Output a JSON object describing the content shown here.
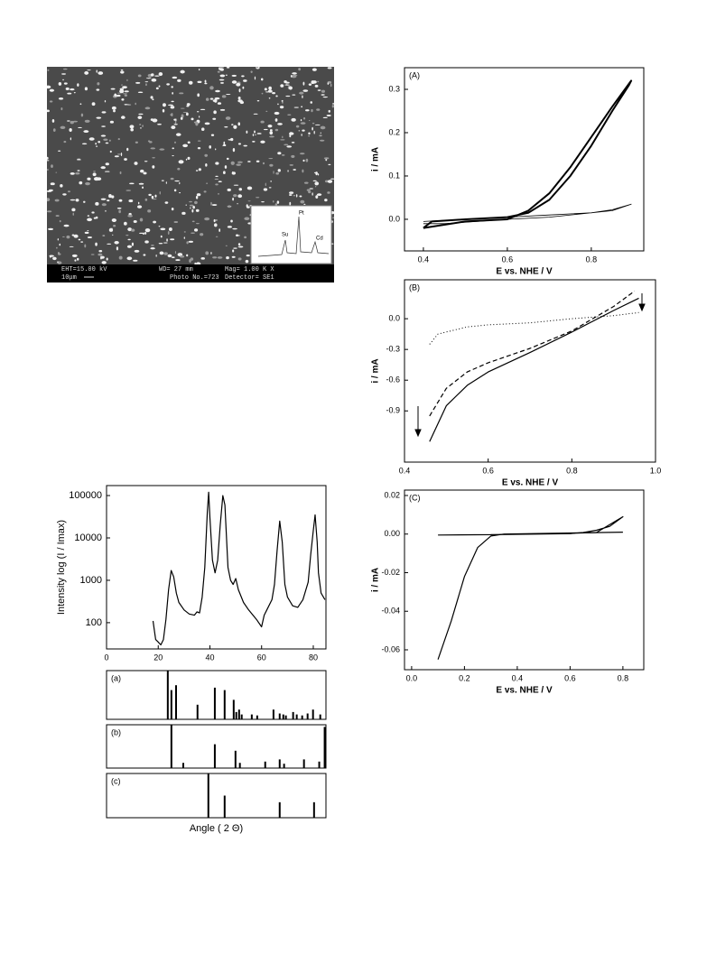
{
  "sem": {
    "eht": "EHT=15.00 kV",
    "wd": "WD= 27 mm",
    "mag": "Mag= 1.00 K X",
    "scale": "10μm",
    "photo": "Photo No.=723",
    "detector": "Detector= SE1",
    "peaks": [
      "Su",
      "Pt",
      "Cd"
    ]
  },
  "chart_data": [
    {
      "type": "line",
      "panel_label": "(A)",
      "xlabel": "E vs. NHE / V",
      "ylabel": "i / mA",
      "xlim": [
        0.355,
        0.925
      ],
      "xticks": [
        0.4,
        0.6,
        0.8
      ],
      "ylim": [
        -0.073,
        0.35
      ],
      "yticks": [
        {
          "value": 0,
          "label": "0.0"
        },
        0.1,
        0.2,
        0.3
      ],
      "series": [
        {
          "color": "#000000",
          "line_style": "thick",
          "x": [
            0.4,
            0.5,
            0.6,
            0.65,
            0.7,
            0.75,
            0.8,
            0.85,
            0.895,
            0.89,
            0.85,
            0.8,
            0.75,
            0.7,
            0.65,
            0.6,
            0.5,
            0.42,
            0.4
          ],
          "values": [
            -0.02,
            -0.005,
            0.0,
            0.02,
            0.06,
            0.12,
            0.19,
            0.26,
            0.32,
            0.31,
            0.25,
            0.17,
            0.1,
            0.045,
            0.015,
            0.005,
            0.0,
            -0.005,
            -0.02
          ]
        },
        {
          "color": "#000000",
          "line_style": "thin",
          "x": [
            0.4,
            0.5,
            0.6,
            0.7,
            0.8,
            0.85,
            0.895,
            0.85,
            0.7,
            0.6,
            0.45,
            0.4
          ],
          "values": [
            -0.005,
            0.0,
            0.005,
            0.01,
            0.015,
            0.022,
            0.035,
            0.02,
            0.005,
            0.0,
            -0.01,
            -0.01
          ]
        }
      ]
    },
    {
      "type": "line",
      "panel_label": "(B)",
      "xlabel": "E vs. NHE / V",
      "ylabel": "i / mA",
      "xlim": [
        0.4,
        1.0
      ],
      "xticks": [
        0.4,
        0.6,
        0.8,
        {
          "value": 1,
          "label": "1.0"
        }
      ],
      "ylim": [
        -1.4,
        0.38
      ],
      "yticks": [
        {
          "value": 0,
          "label": "0.0"
        },
        -0.3,
        -0.6,
        -0.9
      ],
      "series": [
        {
          "color": "#000000",
          "line_style": "solid",
          "x": [
            0.46,
            0.5,
            0.55,
            0.6,
            0.7,
            0.8,
            0.9,
            0.96
          ],
          "values": [
            -1.2,
            -0.85,
            -0.65,
            -0.52,
            -0.33,
            -0.13,
            0.08,
            0.2
          ]
        },
        {
          "color": "#000000",
          "line_style": "dashed",
          "x": [
            0.46,
            0.5,
            0.55,
            0.6,
            0.7,
            0.8,
            0.9,
            0.95
          ],
          "values": [
            -0.95,
            -0.68,
            -0.52,
            -0.43,
            -0.29,
            -0.12,
            0.12,
            0.27
          ]
        },
        {
          "color": "#000000",
          "line_style": "dotted",
          "x": [
            0.46,
            0.48,
            0.55,
            0.6,
            0.7,
            0.8,
            0.9,
            0.96
          ],
          "values": [
            -0.25,
            -0.15,
            -0.08,
            -0.06,
            -0.04,
            0.0,
            0.03,
            0.06
          ]
        }
      ]
    },
    {
      "type": "line",
      "panel_label": "(C)",
      "xlabel": "E vs. NHE / V",
      "ylabel": "i / mA",
      "xlim": [
        -0.027,
        0.879
      ],
      "xticks": [
        {
          "value": 0,
          "label": "0.0"
        },
        0.2,
        0.4,
        0.6,
        0.8
      ],
      "ylim": [
        -0.0703,
        0.0228
      ],
      "yticks": [
        0.02,
        {
          "value": 0,
          "label": "0.00"
        },
        -0.02,
        -0.04,
        -0.06
      ],
      "series": [
        {
          "color": "#000000",
          "line_style": "solid",
          "x": [
            0.1,
            0.3,
            0.5,
            0.6,
            0.65,
            0.7,
            0.75,
            0.8,
            0.7,
            0.5,
            0.3
          ],
          "values": [
            -0.0005,
            -0.0003,
            0.0,
            0.0002,
            0.0008,
            0.002,
            0.004,
            0.009,
            0.0008,
            0.0,
            -0.0003
          ]
        },
        {
          "color": "#000000",
          "line_style": "solid",
          "x": [
            0.1,
            0.15,
            0.2,
            0.25,
            0.3,
            0.35,
            0.8
          ],
          "values": [
            -0.065,
            -0.045,
            -0.022,
            -0.007,
            -0.001,
            0.0,
            0.001
          ]
        }
      ]
    },
    {
      "type": "line",
      "ylabel": "Intensity log (I / Imax)",
      "log_y": true,
      "xlim": [
        0,
        84.9
      ],
      "xticks": [
        0,
        20,
        40,
        60,
        80
      ],
      "ylim": [
        24,
        172000
      ],
      "yticks": [
        100,
        1000,
        10000,
        100000
      ],
      "series": [
        {
          "color": "#000000",
          "line_style": "solid",
          "x": [
            18,
            19,
            20,
            21,
            22,
            23,
            24,
            25,
            26,
            27,
            28,
            30,
            32,
            34,
            35,
            36,
            37,
            38,
            39,
            39.5,
            40,
            41,
            42,
            43,
            44,
            45,
            45.8,
            46.5,
            47,
            48,
            49,
            50,
            51,
            53,
            55,
            58,
            60,
            61,
            62,
            64,
            65,
            66,
            67,
            68,
            69,
            70,
            72,
            74,
            76,
            78,
            79,
            80,
            80.7,
            81.5,
            82,
            83,
            84.5
          ],
          "values": [
            110,
            40,
            35,
            30,
            40,
            120,
            600,
            1700,
            1200,
            500,
            300,
            200,
            160,
            150,
            180,
            170,
            400,
            2000,
            40000,
            120000,
            30000,
            3000,
            1500,
            3000,
            20000,
            100000,
            60000,
            8000,
            2000,
            1000,
            800,
            1100,
            600,
            300,
            200,
            120,
            80,
            150,
            200,
            350,
            800,
            5000,
            25000,
            8000,
            800,
            400,
            250,
            230,
            350,
            900,
            4000,
            15000,
            35000,
            8000,
            1500,
            500,
            350
          ]
        }
      ]
    },
    {
      "type": "stick",
      "panel_label": "(a)",
      "xlim": [
        0,
        84.9
      ],
      "ylim": [
        0,
        100
      ],
      "x": [
        23.7,
        25.1,
        26.9,
        35.2,
        41.9,
        45.7,
        49.2,
        50.2,
        51.3,
        52.3,
        56.2,
        58.3,
        64.6,
        67.0,
        68.4,
        69.4,
        72.2,
        73.6,
        75.7,
        77.8,
        79.9,
        82.7
      ],
      "values": [
        100,
        60,
        70,
        30,
        65,
        60,
        40,
        15,
        20,
        10,
        10,
        8,
        20,
        12,
        10,
        8,
        15,
        10,
        8,
        12,
        20,
        10
      ]
    },
    {
      "type": "stick",
      "panel_label": "(b)",
      "xlim": [
        0,
        84.9
      ],
      "ylim": [
        0,
        100
      ],
      "x": [
        25.1,
        29.7,
        41.9,
        49.9,
        51.6,
        61.4,
        67.0,
        68.7,
        76.4,
        82.3,
        84.4
      ],
      "values": [
        100,
        12,
        55,
        40,
        12,
        15,
        20,
        10,
        20,
        15,
        95
      ]
    },
    {
      "type": "stick",
      "panel_label": "(c)",
      "xlabel": "Angle ( 2 Θ)",
      "xlim": [
        0,
        84.9
      ],
      "ylim": [
        0,
        100
      ],
      "x": [
        39.4,
        45.7,
        67.0,
        80.3
      ],
      "values": [
        100,
        50,
        35,
        35
      ]
    }
  ]
}
